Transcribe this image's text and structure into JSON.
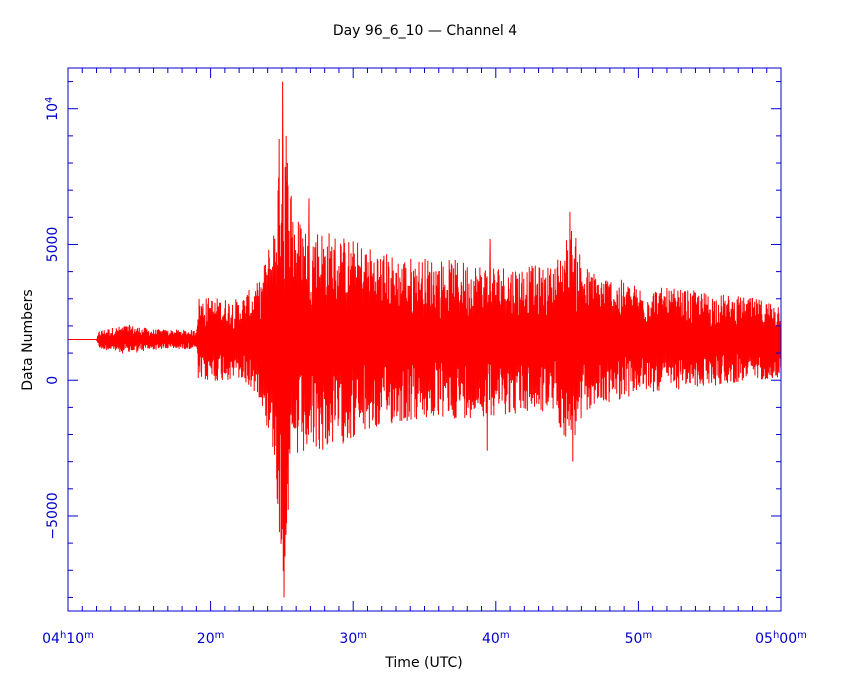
{
  "chart_data": {
    "type": "line",
    "title": "Day 96_6_10  — Channel 4",
    "xlabel": "Time (UTC)",
    "ylabel": "Data Numbers",
    "series": [
      {
        "color": "#ff0000",
        "description_values": "seismogram trace"
      }
    ],
    "x_range_minutes": [
      10,
      60
    ],
    "x_ticks": [
      {
        "value": 10,
        "parts": [
          [
            "04",
            ""
          ],
          [
            "h",
            "sup"
          ],
          [
            "10",
            ""
          ],
          [
            "m",
            "sup"
          ]
        ]
      },
      {
        "value": 20,
        "parts": [
          [
            "20",
            ""
          ],
          [
            "m",
            "sup"
          ]
        ]
      },
      {
        "value": 30,
        "parts": [
          [
            "30",
            ""
          ],
          [
            "m",
            "sup"
          ]
        ]
      },
      {
        "value": 40,
        "parts": [
          [
            "40",
            ""
          ],
          [
            "m",
            "sup"
          ]
        ]
      },
      {
        "value": 50,
        "parts": [
          [
            "50",
            ""
          ],
          [
            "m",
            "sup"
          ]
        ]
      },
      {
        "value": 60,
        "parts": [
          [
            "05",
            ""
          ],
          [
            "h",
            "sup"
          ],
          [
            "00",
            ""
          ],
          [
            "m",
            "sup"
          ]
        ]
      }
    ],
    "ylim": [
      -8500,
      11500
    ],
    "y_ticks": [
      {
        "value": -5000,
        "parts": [
          [
            "−5000",
            ""
          ]
        ]
      },
      {
        "value": 0,
        "parts": [
          [
            "0",
            ""
          ]
        ]
      },
      {
        "value": 5000,
        "parts": [
          [
            "5000",
            ""
          ]
        ]
      },
      {
        "value": 10000,
        "parts": [
          [
            "10",
            ""
          ],
          [
            "4",
            "sup"
          ]
        ]
      }
    ],
    "baseline": 1500,
    "envelope": [
      {
        "t": 10.0,
        "amp": 0
      },
      {
        "t": 12.0,
        "amp": 0
      },
      {
        "t": 12.2,
        "amp": 350
      },
      {
        "t": 14.2,
        "amp": 550
      },
      {
        "t": 16.0,
        "amp": 380
      },
      {
        "t": 19.0,
        "amp": 350
      },
      {
        "t": 19.1,
        "amp": 1600
      },
      {
        "t": 22.0,
        "amp": 1500
      },
      {
        "t": 23.5,
        "amp": 2200
      },
      {
        "t": 24.5,
        "amp": 4500
      },
      {
        "t": 25.0,
        "amp": 9500
      },
      {
        "t": 25.4,
        "amp": 7000
      },
      {
        "t": 26.0,
        "amp": 4600
      },
      {
        "t": 27.0,
        "amp": 4300
      },
      {
        "t": 30.0,
        "amp": 3700
      },
      {
        "t": 33.0,
        "amp": 3100
      },
      {
        "t": 36.0,
        "amp": 3000
      },
      {
        "t": 40.0,
        "amp": 2800
      },
      {
        "t": 44.0,
        "amp": 2700
      },
      {
        "t": 45.3,
        "amp": 4200
      },
      {
        "t": 46.5,
        "amp": 2600
      },
      {
        "t": 50.0,
        "amp": 2000
      },
      {
        "t": 54.0,
        "amp": 1800
      },
      {
        "t": 57.0,
        "amp": 1600
      },
      {
        "t": 60.0,
        "amp": 1400
      }
    ],
    "peaks": [
      {
        "t": 25.05,
        "value": 11000
      },
      {
        "t": 25.15,
        "value": -8000
      },
      {
        "t": 25.3,
        "value": 9000
      },
      {
        "t": 26.9,
        "value": 6700
      },
      {
        "t": 45.2,
        "value": 6200
      },
      {
        "t": 45.4,
        "value": -3000
      },
      {
        "t": 39.6,
        "value": 5200
      },
      {
        "t": 39.4,
        "value": -2600
      }
    ]
  }
}
